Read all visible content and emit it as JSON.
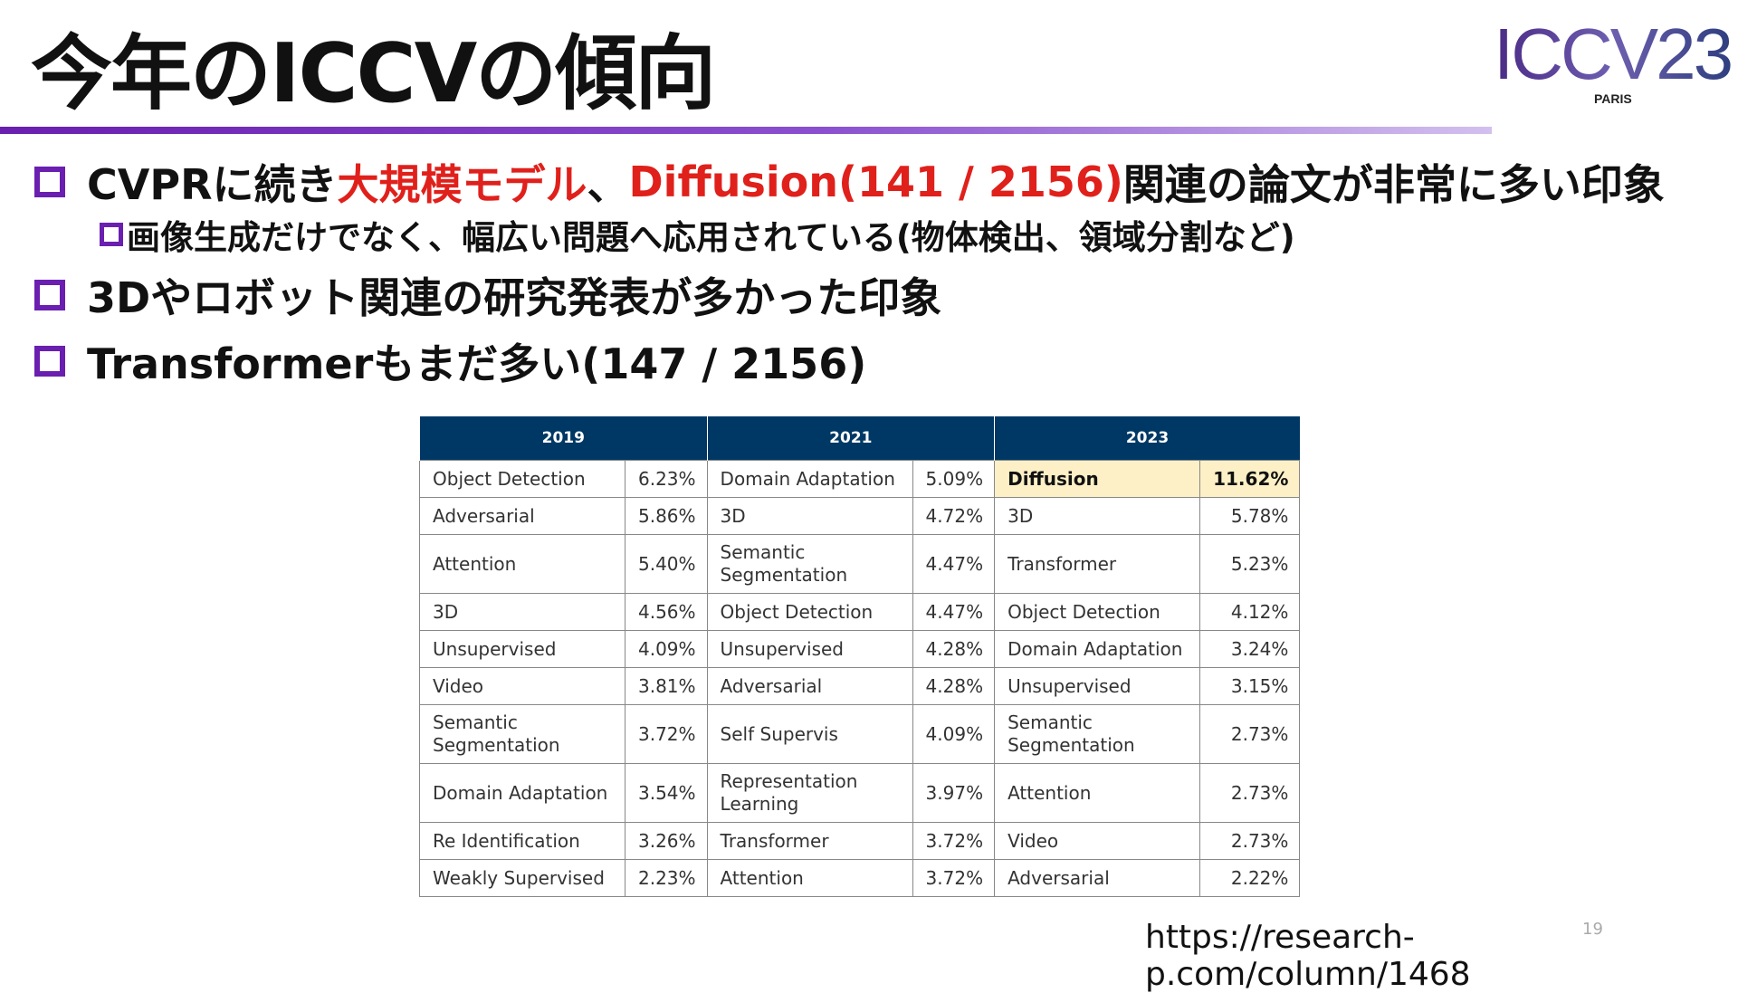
{
  "header": {
    "title": "今年のICCVの傾向",
    "logo": "ICCV23",
    "logo_sub": "PARIS"
  },
  "bullets": [
    {
      "segments": [
        "CVPRに続き",
        "大規模モデル",
        "、",
        "Diffusion(141 / 2156)",
        "関連の論文が非常に多い印象"
      ],
      "sub": "画像生成だけでなく、幅広い問題へ応用されている(物体検出、領域分割など)"
    },
    {
      "segments": [
        "3Dやロボット関連の研究発表が多かった印象"
      ]
    },
    {
      "segments": [
        "Transformerもまだ多い(147 / 2156)"
      ]
    }
  ],
  "table": {
    "headers": [
      "2019",
      "2021",
      "2023"
    ],
    "rows": [
      [
        "Object Detection",
        "6.23%",
        "Domain Adaptation",
        "5.09%",
        "Diffusion",
        "11.62%"
      ],
      [
        "Adversarial",
        "5.86%",
        "3D",
        "4.72%",
        "3D",
        "5.78%"
      ],
      [
        "Attention",
        "5.40%",
        "Semantic Segmentation",
        "4.47%",
        "Transformer",
        "5.23%"
      ],
      [
        "3D",
        "4.56%",
        "Object Detection",
        "4.47%",
        "Object Detection",
        "4.12%"
      ],
      [
        "Unsupervised",
        "4.09%",
        "Unsupervised",
        "4.28%",
        "Domain Adaptation",
        "3.24%"
      ],
      [
        "Video",
        "3.81%",
        "Adversarial",
        "4.28%",
        "Unsupervised",
        "3.15%"
      ],
      [
        "Semantic Segmentation",
        "3.72%",
        "Self Supervis",
        "4.09%",
        "Semantic Segmentation",
        "2.73%"
      ],
      [
        "Domain Adaptation",
        "3.54%",
        "Representation Learning",
        "3.97%",
        "Attention",
        "2.73%"
      ],
      [
        "Re Identification",
        "3.26%",
        "Transformer",
        "3.72%",
        "Video",
        "2.73%"
      ],
      [
        "Weakly Supervised",
        "2.23%",
        "Attention",
        "3.72%",
        "Adversarial",
        "2.22%"
      ]
    ]
  },
  "footer": {
    "url": "https://research-p.com/column/1468",
    "page": "19"
  }
}
